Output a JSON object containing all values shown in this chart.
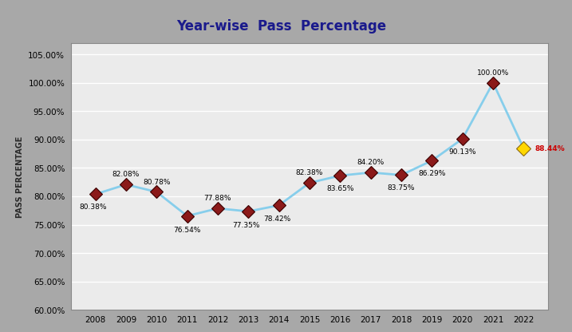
{
  "title": "Year-wise  Pass  Percentage",
  "ylabel": "PASS PERCENTAGE",
  "years": [
    2008,
    2009,
    2010,
    2011,
    2012,
    2013,
    2014,
    2015,
    2016,
    2017,
    2018,
    2019,
    2020,
    2021,
    2022
  ],
  "values": [
    80.38,
    82.08,
    80.78,
    76.54,
    77.88,
    77.35,
    78.42,
    82.38,
    83.65,
    84.2,
    83.75,
    86.29,
    90.13,
    100.0,
    88.44
  ],
  "labels": [
    "80.38%",
    "82.08%",
    "80.78%",
    "76.54%",
    "77.88%",
    "77.35%",
    "78.42%",
    "82.38%",
    "83.65%",
    "84.20%",
    "83.75%",
    "86.29%",
    "90.13%",
    "100.00%",
    "88.44%"
  ],
  "line_color": "#87CEEB",
  "marker_color_regular": "#8B1A1A",
  "marker_color_last": "#FFD700",
  "label_color_regular": "#000000",
  "label_color_last": "#CC0000",
  "ylim_min": 60.0,
  "ylim_max": 107.0,
  "yticks": [
    60.0,
    65.0,
    70.0,
    75.0,
    80.0,
    85.0,
    90.0,
    95.0,
    100.0,
    105.0
  ],
  "plot_bg_color": "#EBEBEB",
  "title_bg_color": "#C8C8C8",
  "grid_color": "#FFFFFF",
  "outer_bg": "#A8A8A8",
  "sidebar_bg": "#B0B0B0",
  "title_font_color": "#1a1a8c",
  "ylabel_font_color": "#2a2a2a"
}
